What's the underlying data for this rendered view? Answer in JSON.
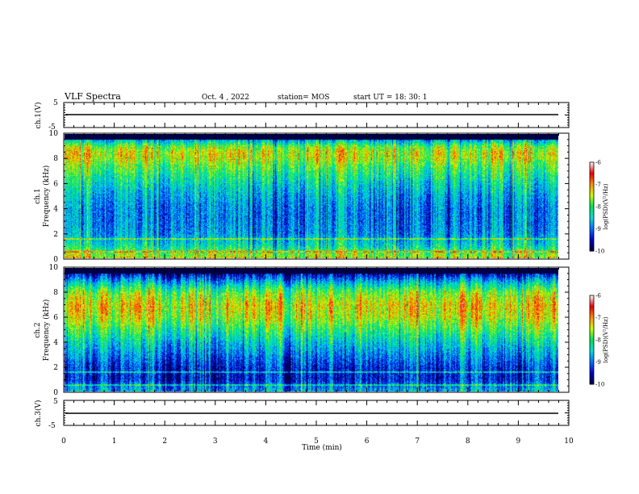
{
  "header": {
    "title": "VLF Spectra",
    "date": "Oct. 4 , 2022",
    "station": "station= MOS",
    "start": "start UT =   18: 30: 1"
  },
  "panels": {
    "ch1_wave_label": "ch.1(V)",
    "ch1_spec_label": "ch.1",
    "ch2_spec_label": "ch.2",
    "ch3_wave_label": "ch.3(V)",
    "freq_label": "Frequency (kHz)",
    "colorbar_label": "log(PSD)(V²/Hz)"
  },
  "colors": {
    "background": "#000080",
    "colormap": [
      "#000040",
      "#0000c8",
      "#0070ff",
      "#00e0e0",
      "#00e060",
      "#c8ff00",
      "#ff9000",
      "#e80000",
      "#ffffff"
    ]
  },
  "chart_data": {
    "type": "heatmap",
    "xlabel": "Time (min)",
    "x_ticks": [
      "0",
      "1",
      "2",
      "3",
      "4",
      "5",
      "6",
      "7",
      "8",
      "9",
      "10"
    ],
    "xlim": [
      0,
      10
    ],
    "waveform_axes": {
      "ylim": [
        -5,
        5
      ],
      "tick_labels": [
        "5",
        "-5"
      ]
    },
    "spectrogram_axes": {
      "ylim": [
        0,
        10
      ],
      "tick_labels": [
        "0",
        "2",
        "4",
        "6",
        "8",
        "10"
      ]
    },
    "colorbar": {
      "range": [
        -10,
        -6
      ],
      "tick_labels": [
        "-6",
        "-7",
        "-8",
        "-9",
        "-10"
      ]
    },
    "ch1_profile": {
      "freq_khz": [
        0,
        0.5,
        1,
        2,
        3,
        4,
        5,
        6,
        7,
        7.5,
        8,
        8.5,
        9,
        9.5,
        10
      ],
      "log_psd": [
        -7.4,
        -7.8,
        -8.3,
        -8.8,
        -8.9,
        -8.9,
        -8.7,
        -8.4,
        -8.0,
        -7.8,
        -7.5,
        -7.4,
        -7.7,
        -8.6,
        -10
      ]
    },
    "ch2_profile": {
      "freq_khz": [
        0,
        0.5,
        1,
        2,
        3,
        4,
        5,
        6,
        7,
        8,
        8.5,
        9,
        9.5,
        10
      ],
      "log_psd": [
        -8.6,
        -8.9,
        -9.3,
        -9.2,
        -8.8,
        -8.4,
        -7.9,
        -7.4,
        -7.2,
        -7.6,
        -8.1,
        -8.7,
        -9.4,
        -10
      ]
    }
  }
}
